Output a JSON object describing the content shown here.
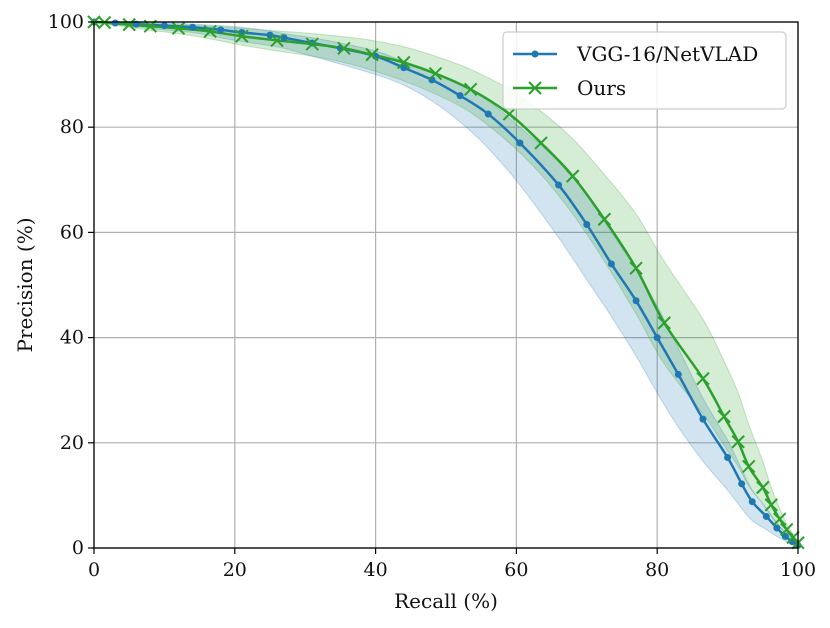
{
  "chart_data": {
    "type": "line",
    "title": "",
    "xlabel": "Recall (%)",
    "ylabel": "Precision (%)",
    "xlim": [
      0,
      100
    ],
    "ylim": [
      0,
      100
    ],
    "xticks": [
      0,
      20,
      40,
      60,
      80,
      100
    ],
    "yticks": [
      0,
      20,
      40,
      60,
      80,
      100
    ],
    "grid": true,
    "legend_position": "top-right",
    "series": [
      {
        "name": "VGG-16/NetVLAD",
        "color": "#1f77b4",
        "marker": "dot",
        "x": [
          0,
          3,
          6,
          10,
          14,
          18,
          21,
          25,
          27,
          31,
          35,
          40,
          44,
          48,
          52,
          56,
          60.5,
          66,
          70,
          73.5,
          77,
          80,
          83,
          86.5,
          90,
          92,
          93.5,
          95.5,
          97,
          98.2,
          99.2,
          100
        ],
        "y": [
          100,
          99.8,
          99.6,
          99.3,
          99,
          98.5,
          98,
          97.5,
          97,
          96,
          95,
          93.5,
          91.3,
          89,
          86,
          82.5,
          77,
          69,
          61.5,
          54,
          47,
          40,
          33,
          24.5,
          17.2,
          12.2,
          8.8,
          6,
          3.8,
          2.2,
          1.2,
          0.5
        ],
        "band_upper": [
          100,
          100,
          99.9,
          99.8,
          99.6,
          99.3,
          99,
          98.3,
          97.8,
          97,
          96,
          94.5,
          92.5,
          90.5,
          88,
          85,
          80,
          73.5,
          67,
          60,
          53,
          46,
          38,
          28.5,
          20.5,
          15,
          11,
          7.5,
          4.8,
          3,
          1.8,
          0.8
        ],
        "band_lower": [
          100,
          99.5,
          99.1,
          98.5,
          98,
          97,
          96.3,
          95.5,
          95,
          93.5,
          92,
          90,
          88,
          85,
          81,
          76,
          69,
          59,
          51,
          44,
          36.5,
          29.5,
          23,
          16.5,
          11,
          7.5,
          5.2,
          3.5,
          2.2,
          1.3,
          0.6,
          0.2
        ]
      },
      {
        "name": "Ours",
        "color": "#2ca02c",
        "marker": "x",
        "x": [
          0,
          1.5,
          5,
          8,
          12,
          16.5,
          21,
          26,
          31,
          35.5,
          39.5,
          44,
          48.5,
          53.5,
          59,
          63.5,
          68,
          72.5,
          77,
          81,
          86.5,
          89.5,
          91.5,
          93,
          95,
          96.2,
          97.4,
          98.4,
          99.3,
          100
        ],
        "y": [
          100,
          99.9,
          99.5,
          99.2,
          98.8,
          98.2,
          97.3,
          96.5,
          95.8,
          95,
          93.8,
          92.3,
          90.2,
          87.2,
          82.5,
          77,
          70.7,
          62.5,
          53.2,
          42.8,
          32.2,
          25,
          20.2,
          15.5,
          11.5,
          8.2,
          5.5,
          3.5,
          2,
          1
        ],
        "band_upper": [
          100,
          100,
          99.9,
          99.7,
          99.5,
          99.2,
          98.8,
          98.3,
          97.8,
          97.2,
          96.5,
          95.3,
          93.5,
          91,
          87.2,
          83,
          77.8,
          71,
          63.5,
          54.5,
          43.5,
          35.5,
          29.5,
          23.5,
          16.5,
          11.5,
          7.5,
          4.5,
          2.6,
          1.2
        ],
        "band_lower": [
          100,
          99.6,
          99,
          98.4,
          97.8,
          96.8,
          95.6,
          94.5,
          93.5,
          92.3,
          90.8,
          88.8,
          86.3,
          82.8,
          77,
          71,
          63.5,
          54.5,
          44.5,
          35,
          25.5,
          19.5,
          15.5,
          11.8,
          8.5,
          6,
          4,
          2.5,
          1.4,
          0.8
        ]
      }
    ]
  }
}
